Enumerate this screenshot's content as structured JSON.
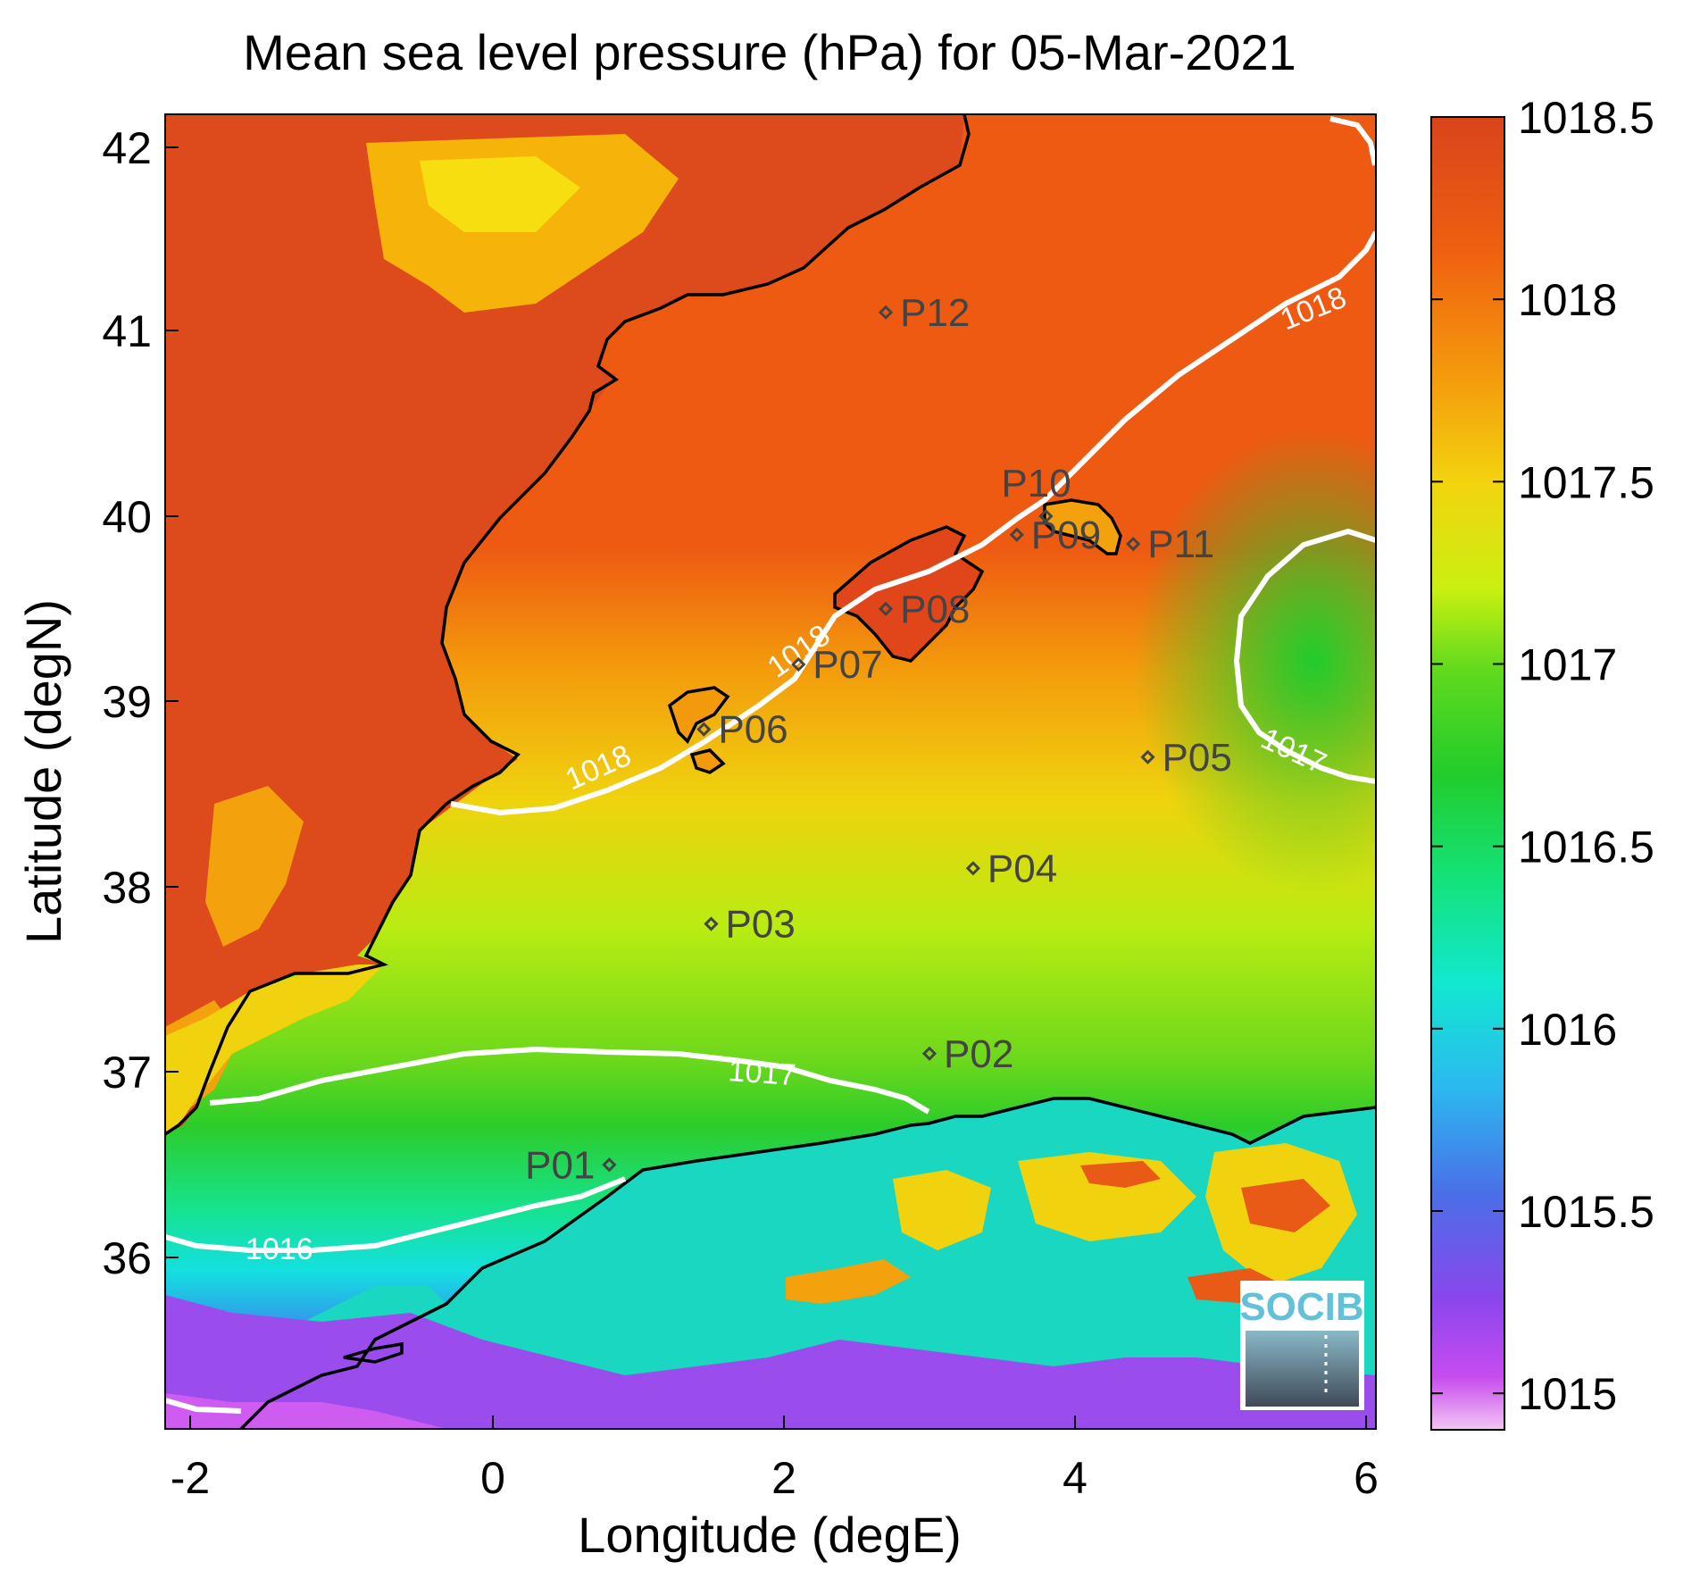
{
  "title": "Mean sea level pressure (hPa) for 05-Mar-2021",
  "xlabel": "Longitude (degE)",
  "ylabel": "Latitude (degN)",
  "xticks": [
    "-2",
    "0",
    "2",
    "4",
    "6"
  ],
  "yticks": [
    "42",
    "41",
    "40",
    "39",
    "38",
    "37",
    "36"
  ],
  "colorbar": {
    "ticks": [
      "1018.5",
      "1018",
      "1017.5",
      "1017",
      "1016.5",
      "1016",
      "1015.5",
      "1015"
    ],
    "colors": [
      "#de4a1a",
      "#f38a0e",
      "#f3e10e",
      "#25d026",
      "#12e8c8",
      "#3f7ff0",
      "#a040f0",
      "#f0c0f0"
    ]
  },
  "contours": [
    {
      "level": "1018",
      "labels": [
        "1018",
        "1018",
        "1018"
      ]
    },
    {
      "level": "1017",
      "labels": [
        "1017",
        "1017"
      ]
    },
    {
      "level": "1016",
      "labels": [
        "1016"
      ]
    }
  ],
  "stations": [
    {
      "id": "P01",
      "lon": 0.8,
      "lat": 36.5
    },
    {
      "id": "P02",
      "lon": 3.0,
      "lat": 37.1
    },
    {
      "id": "P03",
      "lon": 1.5,
      "lat": 37.8
    },
    {
      "id": "P04",
      "lon": 3.3,
      "lat": 38.1
    },
    {
      "id": "P05",
      "lon": 4.5,
      "lat": 38.7
    },
    {
      "id": "P06",
      "lon": 1.45,
      "lat": 38.85
    },
    {
      "id": "P07",
      "lon": 2.1,
      "lat": 39.2
    },
    {
      "id": "P08",
      "lon": 2.7,
      "lat": 39.5
    },
    {
      "id": "P09",
      "lon": 3.6,
      "lat": 39.9
    },
    {
      "id": "P10",
      "lon": 3.8,
      "lat": 40.0
    },
    {
      "id": "P11",
      "lon": 4.4,
      "lat": 39.85
    },
    {
      "id": "P12",
      "lon": 2.7,
      "lat": 41.1
    }
  ],
  "logo": {
    "text": "SOCIB"
  },
  "chart_data": {
    "type": "heatmap",
    "title": "Mean sea level pressure (hPa) for 05-Mar-2021",
    "xlabel": "Longitude (degE)",
    "ylabel": "Latitude (degN)",
    "xlim": [
      -2.2,
      6.0
    ],
    "ylim": [
      35.2,
      42.2
    ],
    "color_range": [
      1014.9,
      1018.5
    ],
    "units": "hPa",
    "contour_levels": [
      1016,
      1017,
      1018
    ]
  }
}
